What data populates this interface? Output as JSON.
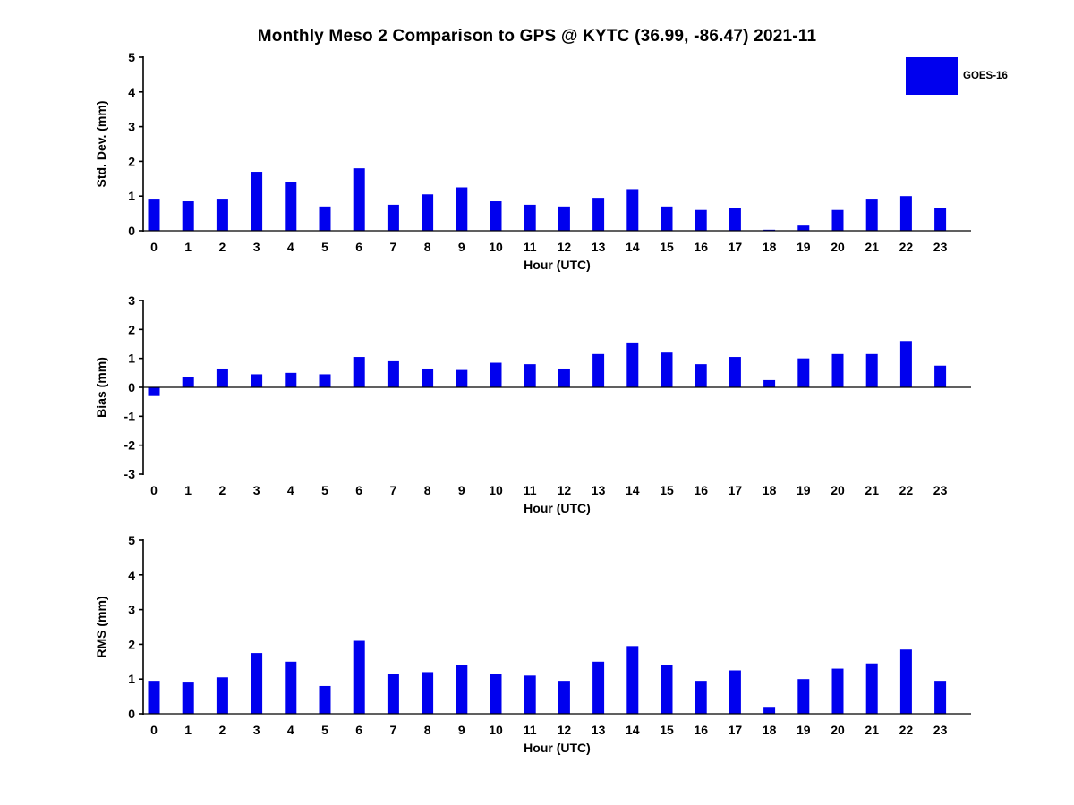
{
  "title": "Monthly Meso 2 Comparison to GPS @ KYTC (36.99, -86.47) 2021-11",
  "legend": {
    "label": "GOES-16",
    "color": "#0000EE"
  },
  "bar_color": "#0000EE",
  "chart_data": [
    {
      "type": "bar",
      "name": "std-dev",
      "ylabel": "Std. Dev. (mm)",
      "xlabel": "Hour (UTC)",
      "ylim": [
        0,
        5
      ],
      "yticks": [
        0,
        1,
        2,
        3,
        4,
        5
      ],
      "legend": "GOES-16",
      "grid": false,
      "categories": [
        "0",
        "1",
        "2",
        "3",
        "4",
        "5",
        "6",
        "7",
        "8",
        "9",
        "10",
        "11",
        "12",
        "13",
        "14",
        "15",
        "16",
        "17",
        "18",
        "19",
        "20",
        "21",
        "22",
        "23"
      ],
      "values": [
        0.9,
        0.85,
        0.9,
        1.7,
        1.4,
        0.7,
        1.8,
        0.75,
        1.05,
        1.25,
        0.85,
        0.75,
        0.7,
        0.95,
        1.2,
        0.7,
        0.6,
        0.65,
        0.03,
        0.15,
        0.6,
        0.9,
        1.0,
        0.65
      ]
    },
    {
      "type": "bar",
      "name": "bias",
      "ylabel": "Bias (mm)",
      "xlabel": "Hour (UTC)",
      "ylim": [
        -3,
        3
      ],
      "yticks": [
        -3,
        -2,
        -1,
        0,
        1,
        2,
        3
      ],
      "legend": "GOES-16",
      "grid": false,
      "categories": [
        "0",
        "1",
        "2",
        "3",
        "4",
        "5",
        "6",
        "7",
        "8",
        "9",
        "10",
        "11",
        "12",
        "13",
        "14",
        "15",
        "16",
        "17",
        "18",
        "19",
        "20",
        "21",
        "22",
        "23"
      ],
      "values": [
        -0.3,
        0.35,
        0.65,
        0.45,
        0.5,
        0.45,
        1.05,
        0.9,
        0.65,
        0.6,
        0.85,
        0.8,
        0.65,
        1.15,
        1.55,
        1.2,
        0.8,
        1.05,
        0.25,
        1.0,
        1.15,
        1.15,
        1.6,
        0.75
      ]
    },
    {
      "type": "bar",
      "name": "rms",
      "ylabel": "RMS (mm)",
      "xlabel": "Hour (UTC)",
      "ylim": [
        0,
        5
      ],
      "yticks": [
        0,
        1,
        2,
        3,
        4,
        5
      ],
      "legend": "GOES-16",
      "grid": false,
      "categories": [
        "0",
        "1",
        "2",
        "3",
        "4",
        "5",
        "6",
        "7",
        "8",
        "9",
        "10",
        "11",
        "12",
        "13",
        "14",
        "15",
        "16",
        "17",
        "18",
        "19",
        "20",
        "21",
        "22",
        "23"
      ],
      "values": [
        0.95,
        0.9,
        1.05,
        1.75,
        1.5,
        0.8,
        2.1,
        1.15,
        1.2,
        1.4,
        1.15,
        1.1,
        0.95,
        1.5,
        1.95,
        1.4,
        0.95,
        1.25,
        0.2,
        1.0,
        1.3,
        1.45,
        1.85,
        0.95
      ]
    }
  ]
}
